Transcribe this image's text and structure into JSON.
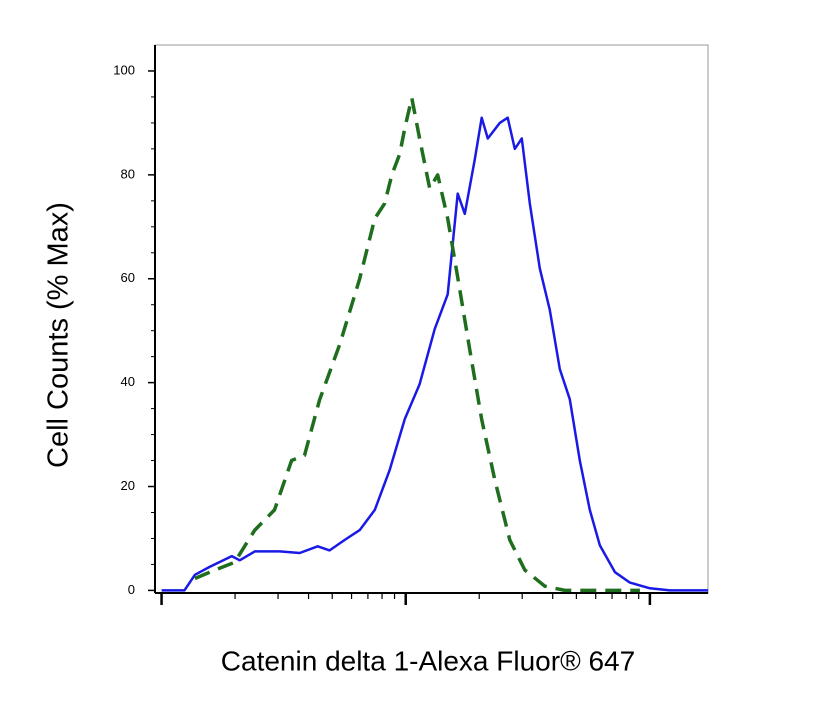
{
  "chart_data": {
    "type": "line",
    "ylabel": "Cell Counts (% Max)",
    "xlabel": "Catenin delta 1-Alexa Fluor® 647",
    "xscale": "log",
    "xlim": [
      94,
      17300
    ],
    "xticks": [
      100,
      200,
      300,
      400,
      500,
      600,
      700,
      800,
      900,
      1000,
      2000,
      3000,
      4000,
      5000,
      6000,
      7000,
      8000,
      9000,
      10000
    ],
    "ylim": [
      -0.5,
      105
    ],
    "yticks": [
      0,
      20,
      40,
      60,
      80,
      100
    ],
    "series": [
      {
        "color": "#1a1ae6",
        "style": "solid",
        "x": [
          100,
          124,
          137,
          157,
          194,
          209,
          241,
          305,
          368,
          436,
          488,
          562,
          648,
          747,
          860,
          991,
          1140,
          1314,
          1486,
          1633,
          1745,
          1918,
          2048,
          2168,
          2428,
          2617,
          2798,
          2987,
          3221,
          3540,
          3890,
          4276,
          4699,
          5164,
          5675,
          6237,
          7194,
          8279,
          10000,
          12080,
          17300
        ],
        "values": [
          0,
          0,
          3,
          4.5,
          6.6,
          5.8,
          7.5,
          7.5,
          7.2,
          8.5,
          7.7,
          9.7,
          11.6,
          15.5,
          23.2,
          33,
          39.7,
          50.3,
          57,
          76.4,
          72.5,
          83,
          91,
          87,
          90,
          91,
          85,
          87,
          74.5,
          62,
          54,
          42.6,
          36.8,
          25,
          15.5,
          8.7,
          3.5,
          1.5,
          0.4,
          0,
          0
        ]
      },
      {
        "color": "#1e6e1e",
        "style": "dashed",
        "x": [
          137,
          165,
          199,
          241,
          290,
          341,
          385,
          444,
          537,
          648,
          747,
          820,
          877,
          945,
          991,
          1059,
          1140,
          1254,
          1352,
          1486,
          1663,
          1828,
          2048,
          2316,
          2668,
          3076,
          3715,
          4487,
          8279,
          9101
        ],
        "values": [
          2.3,
          3.9,
          5.4,
          11.6,
          15.5,
          25,
          26,
          36.7,
          47.4,
          60,
          71.6,
          74.5,
          80,
          84,
          89,
          94.8,
          87,
          77.4,
          80,
          71.6,
          58,
          46.4,
          32.9,
          21.3,
          9.7,
          3.9,
          0.8,
          0,
          0,
          0
        ]
      }
    ]
  }
}
